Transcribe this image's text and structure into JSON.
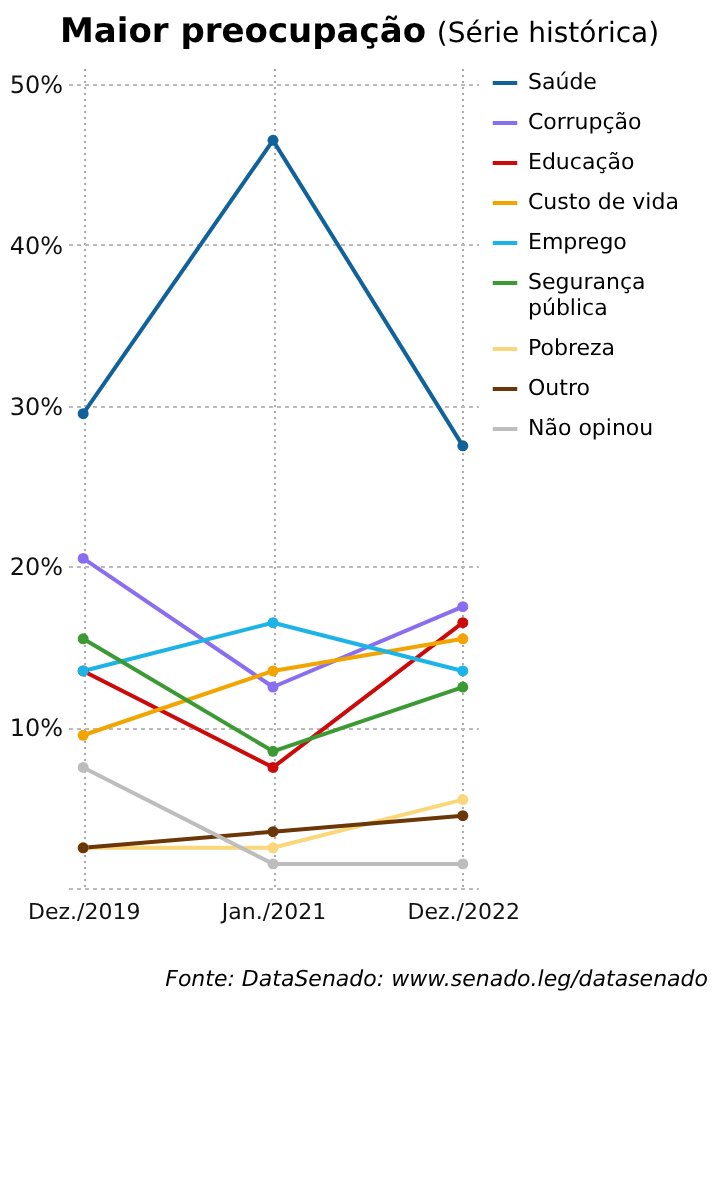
{
  "chart_data": {
    "type": "line",
    "title": "Maior preocupação",
    "subtitle": "(Série histórica)",
    "categories": [
      "Dez./2019",
      "Jan./2021",
      "Dez./2022"
    ],
    "series": [
      {
        "name": "Saúde",
        "color": "#11629a",
        "values": [
          29.5,
          46.5,
          27.5
        ]
      },
      {
        "name": "Corrupção",
        "color": "#8a6ef0",
        "values": [
          20.5,
          12.5,
          17.5
        ]
      },
      {
        "name": "Educação",
        "color": "#cc0a0a",
        "values": [
          13.5,
          7.5,
          16.5
        ]
      },
      {
        "name": "Custo de vida",
        "color": "#f2a500",
        "values": [
          9.5,
          13.5,
          15.5
        ]
      },
      {
        "name": "Emprego",
        "color": "#1cb4e6",
        "values": [
          13.5,
          16.5,
          13.5
        ]
      },
      {
        "name": "Segurança pública",
        "color": "#3c9a34",
        "values": [
          15.5,
          8.5,
          12.5
        ]
      },
      {
        "name": "Pobreza",
        "color": "#fad77a",
        "values": [
          2.5,
          2.5,
          5.5
        ]
      },
      {
        "name": "Outro",
        "color": "#6b3608",
        "values": [
          2.5,
          3.5,
          4.5
        ]
      },
      {
        "name": "Não opinou",
        "color": "#bdbdbd",
        "values": [
          7.5,
          1.5,
          1.5
        ]
      }
    ],
    "ylim": [
      0,
      51
    ],
    "yticks": [
      {
        "value": 0,
        "label": null
      },
      {
        "value": 10,
        "label": "10%"
      },
      {
        "value": 20,
        "label": "20%"
      },
      {
        "value": 30,
        "label": "30%"
      },
      {
        "value": 40,
        "label": "40%"
      },
      {
        "value": 50,
        "label": "50%"
      }
    ],
    "grid": true,
    "legend": "right",
    "marker": "circle",
    "line_style": "solid",
    "annotations": [
      "Fonte: DataSenado: www.senado.leg/datasenado"
    ]
  }
}
